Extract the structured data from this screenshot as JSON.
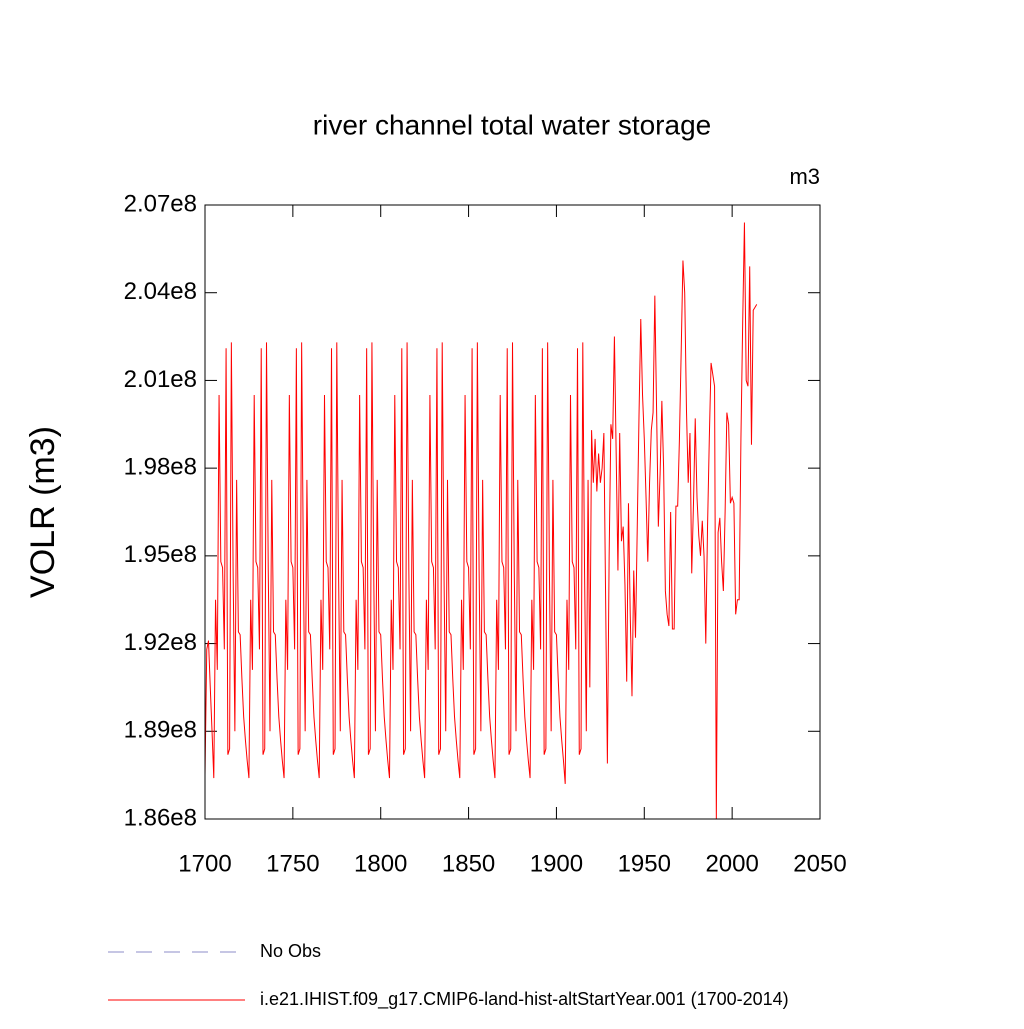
{
  "chart_data": {
    "type": "line",
    "title": "river channel total water storage",
    "annotation": "m3",
    "y_label": "VOLR  (m3)",
    "xlim": [
      1700,
      2050
    ],
    "xticks": [
      1700,
      1750,
      1800,
      1850,
      1900,
      1950,
      2000,
      2050
    ],
    "ylim": [
      186000000.0,
      207000000.0
    ],
    "yticks": [
      {
        "value": 186000000.0,
        "label": "1.86e8"
      },
      {
        "value": 189000000.0,
        "label": "1.89e8"
      },
      {
        "value": 192000000.0,
        "label": "1.92e8"
      },
      {
        "value": 195000000.0,
        "label": "1.95e8"
      },
      {
        "value": 198000000.0,
        "label": "1.98e8"
      },
      {
        "value": 201000000.0,
        "label": "2.01e8"
      },
      {
        "value": 204000000.0,
        "label": "2.04e8"
      },
      {
        "value": 207000000.0,
        "label": "2.07e8"
      }
    ],
    "x": [
      1700,
      1701,
      1702,
      1703,
      1704,
      1705,
      1706,
      1707,
      1708,
      1709,
      1710,
      1711,
      1712,
      1713,
      1714,
      1715,
      1716,
      1717,
      1718,
      1719,
      1720,
      1721,
      1722,
      1723,
      1724,
      1725,
      1726,
      1727,
      1728,
      1729,
      1730,
      1731,
      1732,
      1733,
      1734,
      1735,
      1736,
      1737,
      1738,
      1739,
      1740,
      1741,
      1742,
      1743,
      1744,
      1745,
      1746,
      1747,
      1748,
      1749,
      1750,
      1751,
      1752,
      1753,
      1754,
      1755,
      1756,
      1757,
      1758,
      1759,
      1760,
      1761,
      1762,
      1763,
      1764,
      1765,
      1766,
      1767,
      1768,
      1769,
      1770,
      1771,
      1772,
      1773,
      1774,
      1775,
      1776,
      1777,
      1778,
      1779,
      1780,
      1781,
      1782,
      1783,
      1784,
      1785,
      1786,
      1787,
      1788,
      1789,
      1790,
      1791,
      1792,
      1793,
      1794,
      1795,
      1796,
      1797,
      1798,
      1799,
      1800,
      1801,
      1802,
      1803,
      1804,
      1805,
      1806,
      1807,
      1808,
      1809,
      1810,
      1811,
      1812,
      1813,
      1814,
      1815,
      1816,
      1817,
      1818,
      1819,
      1820,
      1821,
      1822,
      1823,
      1824,
      1825,
      1826,
      1827,
      1828,
      1829,
      1830,
      1831,
      1832,
      1833,
      1834,
      1835,
      1836,
      1837,
      1838,
      1839,
      1840,
      1841,
      1842,
      1843,
      1844,
      1845,
      1846,
      1847,
      1848,
      1849,
      1850,
      1851,
      1852,
      1853,
      1854,
      1855,
      1856,
      1857,
      1858,
      1859,
      1860,
      1861,
      1862,
      1863,
      1864,
      1865,
      1866,
      1867,
      1868,
      1869,
      1870,
      1871,
      1872,
      1873,
      1874,
      1875,
      1876,
      1877,
      1878,
      1879,
      1880,
      1881,
      1882,
      1883,
      1884,
      1885,
      1886,
      1887,
      1888,
      1889,
      1890,
      1891,
      1892,
      1893,
      1894,
      1895,
      1896,
      1897,
      1898,
      1899,
      1900,
      1901,
      1902,
      1903,
      1904,
      1905,
      1906,
      1907,
      1908,
      1909,
      1910,
      1911,
      1912,
      1913,
      1914,
      1915,
      1916,
      1917,
      1918,
      1919,
      1920,
      1921,
      1922,
      1923,
      1924,
      1925,
      1926,
      1927,
      1928,
      1929,
      1930,
      1931,
      1932,
      1933,
      1934,
      1935,
      1936,
      1937,
      1938,
      1939,
      1940,
      1941,
      1942,
      1943,
      1944,
      1945,
      1946,
      1947,
      1948,
      1949,
      1950,
      1951,
      1952,
      1953,
      1954,
      1955,
      1956,
      1957,
      1958,
      1959,
      1960,
      1961,
      1962,
      1963,
      1964,
      1965,
      1966,
      1967,
      1968,
      1969,
      1970,
      1971,
      1972,
      1973,
      1974,
      1975,
      1976,
      1977,
      1978,
      1979,
      1980,
      1981,
      1982,
      1983,
      1984,
      1985,
      1986,
      1987,
      1988,
      1989,
      1990,
      1991,
      1992,
      1993,
      1994,
      1995,
      1996,
      1997,
      1998,
      1999,
      2000,
      2001,
      2002,
      2003,
      2004,
      2005,
      2006,
      2007,
      2008,
      2009,
      2010,
      2011,
      2012,
      2013,
      2014
    ],
    "series": [
      {
        "name": "No Obs",
        "color": "#8c8cc8",
        "dash": true,
        "values": [
          null,
          null,
          null,
          null,
          null,
          null,
          null,
          null,
          null,
          null,
          null,
          null,
          null,
          null,
          null,
          null,
          null,
          null,
          null,
          null,
          null,
          null,
          null,
          null,
          null,
          null,
          null,
          null,
          null,
          null,
          null,
          null,
          null,
          null,
          null,
          null,
          null,
          null,
          null,
          null,
          null,
          null,
          null,
          null,
          null,
          null,
          null,
          null,
          null,
          null,
          null,
          null,
          null,
          null,
          null,
          null,
          null,
          null,
          null,
          null,
          null,
          null,
          null,
          null,
          null,
          null,
          null,
          null,
          null,
          null,
          null,
          null,
          null,
          null,
          null,
          null,
          null,
          null,
          null,
          null,
          null,
          null,
          null,
          null,
          null,
          null,
          null,
          null,
          null,
          null,
          null,
          null,
          null,
          null,
          null,
          null,
          null,
          null,
          null,
          null,
          null,
          null,
          null,
          null,
          null,
          null,
          null,
          null,
          null,
          null,
          null,
          null,
          null,
          null,
          null,
          null,
          null,
          null,
          null,
          null,
          null,
          null,
          null,
          null,
          null,
          null,
          null,
          null,
          null,
          null,
          null,
          null,
          null,
          null,
          null,
          null,
          null,
          null,
          null,
          null,
          null,
          null,
          null,
          null,
          null,
          null,
          null,
          null,
          null,
          null,
          null,
          null,
          null,
          null,
          null,
          null,
          null,
          null,
          null,
          null,
          null,
          null,
          null,
          null,
          null,
          null,
          null,
          null,
          null,
          null,
          null,
          null,
          null,
          null,
          null,
          null,
          null,
          null,
          null,
          null,
          null,
          null,
          null,
          null,
          null,
          null,
          null,
          null,
          null,
          null,
          null,
          null,
          null,
          null,
          null,
          null,
          null,
          null,
          null,
          null,
          null,
          null,
          null,
          null,
          null,
          null,
          null,
          null,
          null,
          null,
          null,
          null,
          null,
          null,
          null,
          null,
          null,
          null,
          null,
          null,
          null,
          null,
          null,
          null,
          null,
          null,
          null,
          null,
          null,
          null,
          null,
          null,
          null,
          null,
          null,
          null,
          null,
          null,
          null,
          null,
          null,
          null,
          null,
          null,
          null,
          null,
          null,
          null,
          null,
          null,
          null,
          null,
          null,
          null,
          null,
          null,
          null,
          null,
          null,
          null,
          null,
          null,
          null,
          null,
          null,
          null,
          null,
          null,
          null,
          null,
          null,
          null,
          null,
          null,
          null,
          null,
          null,
          null,
          null,
          null,
          null,
          null,
          null,
          null,
          null,
          null,
          null,
          null,
          null,
          null,
          null,
          null,
          null,
          null,
          null,
          null,
          null,
          null,
          null,
          null,
          null,
          null,
          null,
          null,
          null,
          null,
          null,
          null,
          null,
          null,
          null,
          null,
          null,
          null,
          null
        ]
      },
      {
        "name": "i.e21.IHIST.f09_g17.CMIP6-land-hist-altStartYear.001 (1700-2014)",
        "color": "#ff0000",
        "dash": false,
        "values": [
          187500000.0,
          191800000.0,
          192100000.0,
          190500000.0,
          189000000.0,
          187400000.0,
          193500000.0,
          191100000.0,
          200500000.0,
          194800000.0,
          194600000.0,
          191800000.0,
          202100000.0,
          188200000.0,
          188400000.0,
          202300000.0,
          194500000.0,
          189000000.0,
          197600000.0,
          192400000.0,
          192300000.0,
          190800000.0,
          189500000.0,
          188700000.0,
          188000000.0,
          187400000.0,
          193500000.0,
          191100000.0,
          200500000.0,
          194800000.0,
          194600000.0,
          191800000.0,
          202100000.0,
          188200000.0,
          188400000.0,
          202300000.0,
          194500000.0,
          189000000.0,
          197600000.0,
          192400000.0,
          192300000.0,
          190800000.0,
          189500000.0,
          188700000.0,
          188000000.0,
          187400000.0,
          193500000.0,
          191100000.0,
          200500000.0,
          194800000.0,
          194600000.0,
          191800000.0,
          202100000.0,
          188200000.0,
          188400000.0,
          202300000.0,
          194500000.0,
          189000000.0,
          197600000.0,
          192400000.0,
          192300000.0,
          190800000.0,
          189500000.0,
          188700000.0,
          188000000.0,
          187400000.0,
          193500000.0,
          191100000.0,
          200500000.0,
          194800000.0,
          194600000.0,
          191800000.0,
          202100000.0,
          188200000.0,
          188400000.0,
          202300000.0,
          194500000.0,
          189000000.0,
          197600000.0,
          192400000.0,
          192300000.0,
          190800000.0,
          189500000.0,
          188700000.0,
          188000000.0,
          187400000.0,
          193500000.0,
          191100000.0,
          200500000.0,
          194800000.0,
          194600000.0,
          191800000.0,
          202100000.0,
          188200000.0,
          188400000.0,
          202300000.0,
          194500000.0,
          189000000.0,
          197600000.0,
          192400000.0,
          192300000.0,
          190800000.0,
          189500000.0,
          188700000.0,
          188000000.0,
          187400000.0,
          193500000.0,
          191100000.0,
          200500000.0,
          194800000.0,
          194600000.0,
          191800000.0,
          202100000.0,
          188200000.0,
          188400000.0,
          202300000.0,
          194500000.0,
          189000000.0,
          197600000.0,
          192400000.0,
          192300000.0,
          190800000.0,
          189500000.0,
          188700000.0,
          188000000.0,
          187400000.0,
          193500000.0,
          191100000.0,
          200500000.0,
          194800000.0,
          194600000.0,
          191800000.0,
          202100000.0,
          188200000.0,
          188400000.0,
          202300000.0,
          194500000.0,
          189000000.0,
          197600000.0,
          192400000.0,
          192300000.0,
          190800000.0,
          189500000.0,
          188700000.0,
          188000000.0,
          187400000.0,
          193500000.0,
          191100000.0,
          200500000.0,
          194800000.0,
          194600000.0,
          191800000.0,
          202100000.0,
          188200000.0,
          188400000.0,
          202300000.0,
          194500000.0,
          189000000.0,
          197600000.0,
          192400000.0,
          192300000.0,
          190800000.0,
          189500000.0,
          188700000.0,
          188000000.0,
          187400000.0,
          193500000.0,
          191100000.0,
          200500000.0,
          194800000.0,
          194600000.0,
          191800000.0,
          202100000.0,
          188200000.0,
          188400000.0,
          202300000.0,
          194500000.0,
          189000000.0,
          197600000.0,
          192400000.0,
          192300000.0,
          190800000.0,
          189500000.0,
          188700000.0,
          188000000.0,
          187400000.0,
          193500000.0,
          191100000.0,
          200500000.0,
          194800000.0,
          194600000.0,
          191800000.0,
          202100000.0,
          188200000.0,
          188400000.0,
          202300000.0,
          194500000.0,
          189000000.0,
          197600000.0,
          192400000.0,
          192300000.0,
          190800000.0,
          189500000.0,
          188700000.0,
          188000000.0,
          187200000.0,
          193500000.0,
          191100000.0,
          200500000.0,
          194800000.0,
          194600000.0,
          191800000.0,
          202100000.0,
          188200000.0,
          188400000.0,
          202300000.0,
          194500000.0,
          189000000.0,
          197600000.0,
          190500000.0,
          199300000.0,
          197500000.0,
          199000000.0,
          197200000.0,
          198500000.0,
          197500000.0,
          198000000.0,
          199200000.0,
          193500000.0,
          187900000.0,
          195000000.0,
          199500000.0,
          199000000.0,
          202500000.0,
          198500000.0,
          194500000.0,
          199200000.0,
          195500000.0,
          196000000.0,
          194000000.0,
          190700000.0,
          196800000.0,
          193000000.0,
          190200000.0,
          194500000.0,
          192200000.0,
          196000000.0,
          199800000.0,
          203100000.0,
          200500000.0,
          199000000.0,
          197000000.0,
          194800000.0,
          197500000.0,
          199300000.0,
          199900000.0,
          203900000.0,
          200000000.0,
          196000000.0,
          197800000.0,
          200300000.0,
          198000000.0,
          193800000.0,
          193000000.0,
          192600000.0,
          196500000.0,
          192500000.0,
          192500000.0,
          196700000.0,
          196700000.0,
          199000000.0,
          202000000.0,
          205100000.0,
          204000000.0,
          200000000.0,
          197500000.0,
          199200000.0,
          194400000.0,
          196800000.0,
          199700000.0,
          197000000.0,
          195700000.0,
          195000000.0,
          196200000.0,
          195000000.0,
          192000000.0,
          196000000.0,
          199000000.0,
          201600000.0,
          201200000.0,
          200800000.0,
          186000000.0,
          195800000.0,
          196300000.0,
          194800000.0,
          193800000.0,
          196500000.0,
          199900000.0,
          199500000.0,
          196800000.0,
          197000000.0,
          196800000.0,
          193000000.0,
          193500000.0,
          193500000.0,
          199000000.0,
          203000000.0,
          206400000.0,
          201000000.0,
          200800000.0,
          204900000.0,
          198800000.0,
          203400000.0,
          203500000.0,
          203600000.0
        ]
      }
    ]
  }
}
